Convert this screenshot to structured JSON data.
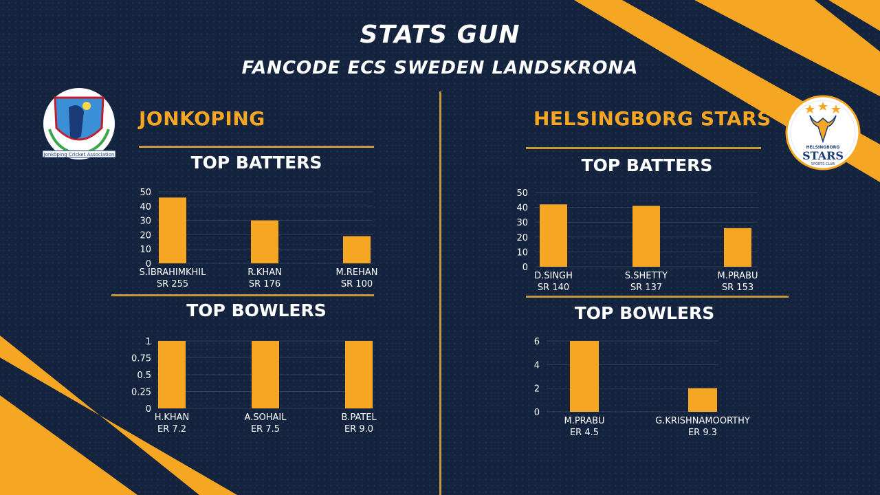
{
  "header": {
    "title": "STATS GUN",
    "subtitle": "FANCODE ECS SWEDEN LANDSKRONA"
  },
  "colors": {
    "background": "#14243f",
    "accent": "#f5a623",
    "rule": "#c99a3d"
  },
  "teams": [
    {
      "name": "JONKOPING",
      "logo_text": "Jonköping Cricket Association",
      "batters_title": "TOP BATTERS",
      "bowlers_title": "TOP BOWLERS"
    },
    {
      "name": "HELSINGBORG STARS",
      "logo_text": {
        "top": "HELSINGBORG",
        "main": "STARS",
        "bottom": "SPORTS CLUB"
      },
      "batters_title": "TOP BATTERS",
      "bowlers_title": "TOP BOWLERS"
    }
  ],
  "chart_data": [
    {
      "type": "bar",
      "team": "JONKOPING",
      "metric": "TOP BATTERS",
      "categories": [
        "S.IBRAHIMKHIL",
        "R.KHAN",
        "M.REHAN"
      ],
      "sublabels": [
        "SR 255",
        "SR 176",
        "SR 100"
      ],
      "values": [
        46,
        30,
        19
      ],
      "yticks": [
        "0",
        "10",
        "20",
        "30",
        "40",
        "50"
      ],
      "ylim": [
        0,
        50
      ]
    },
    {
      "type": "bar",
      "team": "JONKOPING",
      "metric": "TOP BOWLERS",
      "categories": [
        "H.KHAN",
        "A.SOHAIL",
        "B.PATEL"
      ],
      "sublabels": [
        "ER 7.2",
        "ER 7.5",
        "ER 9.0"
      ],
      "values": [
        1,
        1,
        1
      ],
      "yticks": [
        "0",
        "0.25",
        "0.5",
        "0.75",
        "1"
      ],
      "ylim": [
        0,
        1
      ]
    },
    {
      "type": "bar",
      "team": "HELSINGBORG STARS",
      "metric": "TOP BATTERS",
      "categories": [
        "D.SINGH",
        "S.SHETTY",
        "M.PRABU"
      ],
      "sublabels": [
        "SR 140",
        "SR 137",
        "SR 153"
      ],
      "values": [
        42,
        41,
        26
      ],
      "yticks": [
        "0",
        "10",
        "20",
        "30",
        "40",
        "50"
      ],
      "ylim": [
        0,
        50
      ]
    },
    {
      "type": "bar",
      "team": "HELSINGBORG STARS",
      "metric": "TOP BOWLERS",
      "categories": [
        "M.PRABU",
        "G.KRISHNAMOORTHY"
      ],
      "sublabels": [
        "ER 4.5",
        "ER 9.3"
      ],
      "values": [
        6,
        2
      ],
      "yticks": [
        "0",
        "2",
        "4",
        "6"
      ],
      "ylim": [
        0,
        6
      ]
    }
  ]
}
